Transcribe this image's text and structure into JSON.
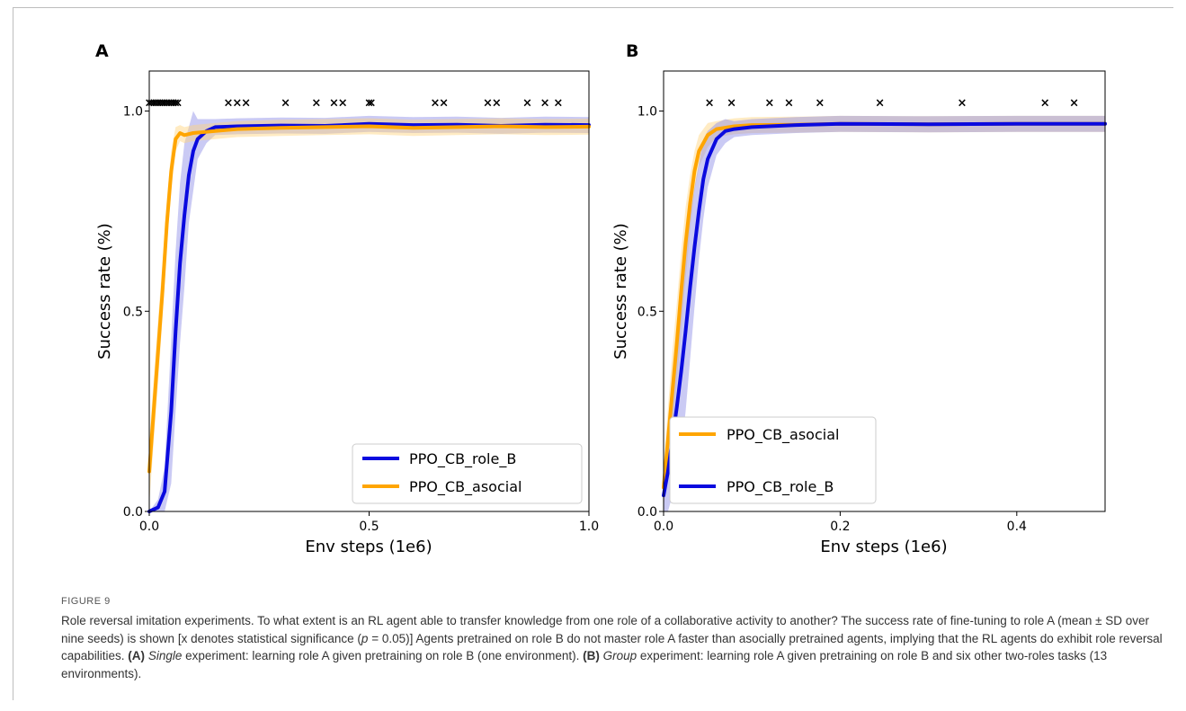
{
  "figure": {
    "label": "FIGURE 9",
    "caption": {
      "intro": "Role reversal imitation experiments. To what extent is an RL agent able to transfer knowledge from one role of a collaborative activity to another? The success rate of fine-tuning to role A (mean ± SD over nine seeds) is shown [x denotes statistical significance (",
      "p_symbol": "p",
      "p_value": " = 0.05)] Agents pretrained on role B do not master role A faster than asocially pretrained agents, implying that the RL agents do exhibit role reversal capabilities. ",
      "a_tag": "(A)",
      "a_emph": "Single",
      "a_rest": " experiment: learning role A given pretraining on role B (one environment). ",
      "b_tag": "(B)",
      "b_emph": "Group",
      "b_rest": " experiment: learning role A given pretraining on role B and six other two-roles tasks (13 environments)."
    }
  },
  "colors": {
    "role_B": "#0a0adf",
    "asocial": "#ffa500",
    "role_B_band": "#8a8ae6",
    "asocial_band": "#ffd27a"
  },
  "chart_data": [
    {
      "panel": "A",
      "type": "line",
      "xlabel": "Env steps (1e6)",
      "ylabel": "Success rate (%)",
      "xlim": [
        0,
        1.0
      ],
      "ylim": [
        0,
        1.1
      ],
      "xticks": [
        "0.0",
        "0.5",
        "1.0"
      ],
      "xtick_values": [
        0,
        0.5,
        1.0
      ],
      "yticks": [
        "0.0",
        "0.5",
        "1.0"
      ],
      "ytick_values": [
        0,
        0.5,
        1.0
      ],
      "grid": false,
      "legend_position": "lower right",
      "legend": [
        "PPO_CB_role_B",
        "PPO_CB_asocial"
      ],
      "significance_y": 1.02,
      "significance_x": [
        0.0,
        0.005,
        0.01,
        0.015,
        0.02,
        0.025,
        0.03,
        0.035,
        0.04,
        0.045,
        0.05,
        0.055,
        0.06,
        0.065,
        0.18,
        0.2,
        0.22,
        0.31,
        0.38,
        0.42,
        0.44,
        0.5,
        0.505,
        0.65,
        0.67,
        0.77,
        0.79,
        0.86,
        0.9,
        0.93
      ],
      "series": [
        {
          "name": "PPO_CB_role_B",
          "color": "#0a0adf",
          "x": [
            0,
            0.02,
            0.035,
            0.05,
            0.06,
            0.07,
            0.08,
            0.09,
            0.1,
            0.11,
            0.13,
            0.15,
            0.2,
            0.3,
            0.4,
            0.5,
            0.6,
            0.7,
            0.8,
            0.9,
            1.0
          ],
          "y": [
            0,
            0.01,
            0.05,
            0.25,
            0.45,
            0.62,
            0.74,
            0.84,
            0.9,
            0.93,
            0.95,
            0.96,
            0.962,
            0.964,
            0.963,
            0.968,
            0.965,
            0.966,
            0.963,
            0.966,
            0.965
          ],
          "sd": [
            0,
            0.02,
            0.06,
            0.18,
            0.2,
            0.2,
            0.18,
            0.12,
            0.1,
            0.05,
            0.03,
            0.02,
            0.02,
            0.02,
            0.02,
            0.02,
            0.02,
            0.02,
            0.02,
            0.02,
            0.02
          ]
        },
        {
          "name": "PPO_CB_asocial",
          "color": "#ffa500",
          "x": [
            0,
            0.01,
            0.02,
            0.03,
            0.04,
            0.05,
            0.06,
            0.07,
            0.08,
            0.1,
            0.15,
            0.2,
            0.3,
            0.4,
            0.5,
            0.6,
            0.7,
            0.8,
            0.9,
            1.0
          ],
          "y": [
            0.1,
            0.25,
            0.4,
            0.55,
            0.72,
            0.85,
            0.93,
            0.945,
            0.94,
            0.945,
            0.95,
            0.955,
            0.958,
            0.96,
            0.962,
            0.958,
            0.96,
            0.962,
            0.96,
            0.961
          ],
          "sd": [
            0.08,
            0.08,
            0.08,
            0.07,
            0.06,
            0.05,
            0.03,
            0.02,
            0.02,
            0.02,
            0.02,
            0.02,
            0.02,
            0.02,
            0.02,
            0.02,
            0.02,
            0.02,
            0.02,
            0.02
          ]
        }
      ]
    },
    {
      "panel": "B",
      "type": "line",
      "xlabel": "Env steps (1e6)",
      "ylabel": "Success rate (%)",
      "xlim": [
        0,
        0.5
      ],
      "ylim": [
        0,
        1.1
      ],
      "xticks": [
        "0.0",
        "0.2",
        "0.4"
      ],
      "xtick_values": [
        0,
        0.2,
        0.4
      ],
      "yticks": [
        "0.0",
        "0.5",
        "1.0"
      ],
      "ytick_values": [
        0,
        0.5,
        1.0
      ],
      "grid": false,
      "legend_position": "lower left",
      "legend": [
        "PPO_CB_asocial",
        "PPO_CB_role_B"
      ],
      "significance_y": 1.02,
      "significance_x": [
        0.052,
        0.077,
        0.12,
        0.142,
        0.177,
        0.245,
        0.338,
        0.432,
        0.465
      ],
      "series": [
        {
          "name": "PPO_CB_asocial",
          "color": "#ffa500",
          "x": [
            0,
            0.005,
            0.01,
            0.015,
            0.02,
            0.025,
            0.03,
            0.035,
            0.04,
            0.05,
            0.06,
            0.08,
            0.1,
            0.15,
            0.2,
            0.3,
            0.4,
            0.5
          ],
          "y": [
            0.06,
            0.18,
            0.3,
            0.42,
            0.55,
            0.67,
            0.77,
            0.85,
            0.9,
            0.94,
            0.955,
            0.962,
            0.965,
            0.966,
            0.968,
            0.967,
            0.968,
            0.968
          ],
          "sd": [
            0.05,
            0.08,
            0.1,
            0.1,
            0.1,
            0.09,
            0.07,
            0.05,
            0.04,
            0.03,
            0.02,
            0.02,
            0.02,
            0.02,
            0.02,
            0.02,
            0.02,
            0.02
          ]
        },
        {
          "name": "PPO_CB_role_B",
          "color": "#0a0adf",
          "x": [
            0,
            0.005,
            0.01,
            0.015,
            0.02,
            0.025,
            0.03,
            0.035,
            0.04,
            0.045,
            0.05,
            0.06,
            0.07,
            0.08,
            0.1,
            0.15,
            0.2,
            0.3,
            0.4,
            0.5
          ],
          "y": [
            0.04,
            0.1,
            0.18,
            0.26,
            0.35,
            0.45,
            0.56,
            0.66,
            0.75,
            0.83,
            0.88,
            0.93,
            0.95,
            0.955,
            0.96,
            0.965,
            0.968,
            0.967,
            0.968,
            0.968
          ],
          "sd": [
            0.05,
            0.1,
            0.14,
            0.18,
            0.2,
            0.2,
            0.18,
            0.15,
            0.12,
            0.1,
            0.07,
            0.04,
            0.03,
            0.02,
            0.02,
            0.02,
            0.02,
            0.02,
            0.02,
            0.02
          ]
        }
      ]
    }
  ]
}
